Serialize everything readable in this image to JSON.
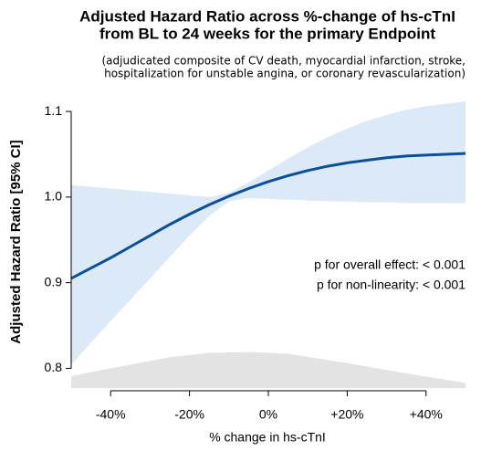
{
  "chart_data": {
    "type": "line",
    "title": [
      "Adjusted Hazard Ratio across %-change of hs-cTnI",
      "from BL to 24 weeks for the primary Endpoint"
    ],
    "subtitle": [
      "(adjudicated composite of CV death, myocardial infarction, stroke,",
      "hospitalization for unstable angina, or coronary revascularization)"
    ],
    "x_label": "% change in hs-cTnI",
    "y_label": "Adjusted Hazard Ratio [95% CI]",
    "annotations": [
      "p for overall effect: < 0.001",
      "p for non-linearity: < 0.001"
    ],
    "x": [
      -50,
      -45,
      -40,
      -35,
      -30,
      -25,
      -20,
      -15,
      -10,
      -5,
      0,
      5,
      10,
      15,
      20,
      25,
      30,
      35,
      40,
      45,
      50
    ],
    "values": [
      0.905,
      0.917,
      0.929,
      0.942,
      0.955,
      0.968,
      0.98,
      0.991,
      1.001,
      1.01,
      1.018,
      1.025,
      1.031,
      1.036,
      1.04,
      1.043,
      1.046,
      1.048,
      1.049,
      1.05,
      1.051
    ],
    "ci_upper": [
      1.014,
      1.012,
      1.01,
      1.008,
      1.006,
      1.004,
      1.002,
      1.0,
      1.005,
      1.017,
      1.031,
      1.045,
      1.058,
      1.07,
      1.08,
      1.089,
      1.096,
      1.102,
      1.106,
      1.109,
      1.112
    ],
    "ci_lower": [
      0.804,
      0.83,
      0.855,
      0.88,
      0.905,
      0.93,
      0.955,
      0.978,
      0.995,
      0.999,
      0.998,
      0.997,
      0.996,
      0.995,
      0.995,
      0.994,
      0.994,
      0.993,
      0.993,
      0.993,
      0.993
    ],
    "density_x": [
      -50,
      -40,
      -25,
      -15,
      -5,
      5,
      20,
      35,
      50
    ],
    "density": [
      0.791,
      0.8,
      0.813,
      0.818,
      0.819,
      0.817,
      0.806,
      0.794,
      0.783
    ],
    "color": "#0b4f9c",
    "band_color": "#dce9f6",
    "density_color": "#e3e3e3",
    "xlim": [
      -50,
      50
    ],
    "ylim": [
      0.777,
      1.115
    ],
    "xticks": [
      {
        "value": -40,
        "label": "-40%"
      },
      {
        "value": -20,
        "label": "-20%"
      },
      {
        "value": 0,
        "label": "0%"
      },
      {
        "value": 20,
        "label": "+20%"
      },
      {
        "value": 40,
        "label": "+40%"
      }
    ],
    "yticks": [
      0.8,
      0.9,
      {
        "value": 1,
        "label": "1.0"
      },
      1.1
    ]
  }
}
